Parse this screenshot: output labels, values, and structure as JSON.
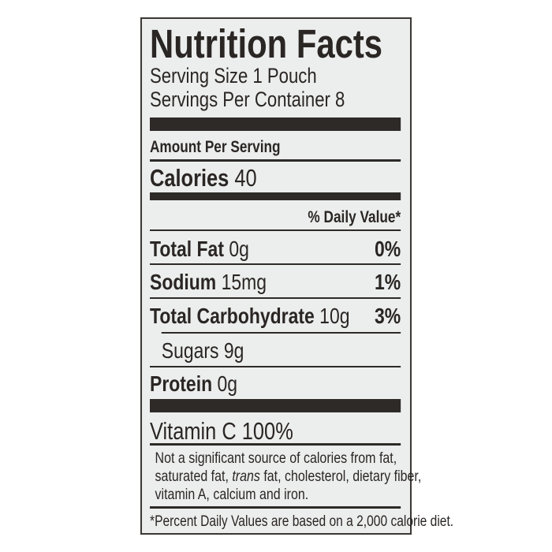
{
  "label": {
    "title": "Nutrition Facts",
    "serving_size": "Serving Size 1 Pouch",
    "servings_per_container": "Servings Per Container 8",
    "amount_per_serving": "Amount Per Serving",
    "calories_label": "Calories",
    "calories_value": "40",
    "daily_value_header": "% Daily Value*",
    "nutrients": [
      {
        "name": "Total Fat",
        "amount": "0g",
        "dv": "0%"
      },
      {
        "name": "Sodium",
        "amount": "15mg",
        "dv": "1%"
      },
      {
        "name": "Total Carbohydrate",
        "amount": "10g",
        "dv": "3%"
      },
      {
        "name": "Sugars",
        "amount": "9g",
        "dv": ""
      },
      {
        "name": "Protein",
        "amount": "0g",
        "dv": ""
      }
    ],
    "vitamin": "Vitamin C 100%",
    "note_part1": "Not a significant source of calories from fat,",
    "note_part2a": "saturated fat, ",
    "note_trans": "trans",
    "note_part2b": " fat, cholesterol, dietary fiber,",
    "note_part3": "vitamin A, calcium and iron.",
    "footnote": "*Percent Daily Values are based on a 2,000 calorie diet."
  }
}
